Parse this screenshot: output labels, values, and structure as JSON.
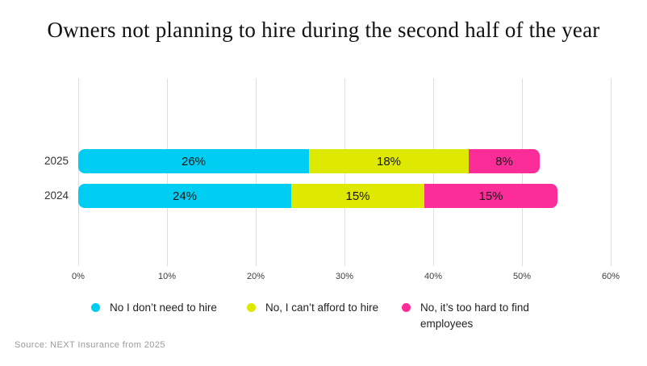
{
  "title": "Owners not planning to hire during the second half of the year",
  "source_note": "Source: NEXT Insurance from 2025",
  "colors": {
    "cyan": "#00CDF2",
    "yellow": "#DEE800",
    "pink": "#FC2D99",
    "gridline": "#dedede"
  },
  "chart_data": {
    "type": "bar",
    "orientation": "horizontal",
    "stacked": true,
    "title": "Owners not planning to hire during the second half of the year",
    "categories": [
      "2025",
      "2024"
    ],
    "series": [
      {
        "name": "No I don’t need to hire",
        "color": "#00CDF2",
        "values": [
          26,
          24
        ]
      },
      {
        "name": "No, I can’t afford to hire",
        "color": "#DEE800",
        "values": [
          18,
          15
        ]
      },
      {
        "name": "No, it’s too hard to find employees",
        "color": "#FC2D99",
        "values": [
          8,
          15
        ]
      }
    ],
    "bar_labels": [
      [
        "26%",
        "18%",
        "8%"
      ],
      [
        "24%",
        "15%",
        "15%"
      ]
    ],
    "x_ticks": [
      "0%",
      "10%",
      "20%",
      "30%",
      "40%",
      "50%",
      "60%"
    ],
    "xlim": [
      0,
      60
    ],
    "xlabel": "",
    "ylabel": "",
    "grid": "vertical",
    "legend_position": "bottom"
  },
  "legend": {
    "items": [
      {
        "label": "No I don’t need to hire",
        "color": "#00CDF2"
      },
      {
        "label": "No, I can’t afford to hire",
        "color": "#DEE800"
      },
      {
        "label": "No, it’s too hard to find employees",
        "color": "#FC2D99"
      }
    ]
  }
}
